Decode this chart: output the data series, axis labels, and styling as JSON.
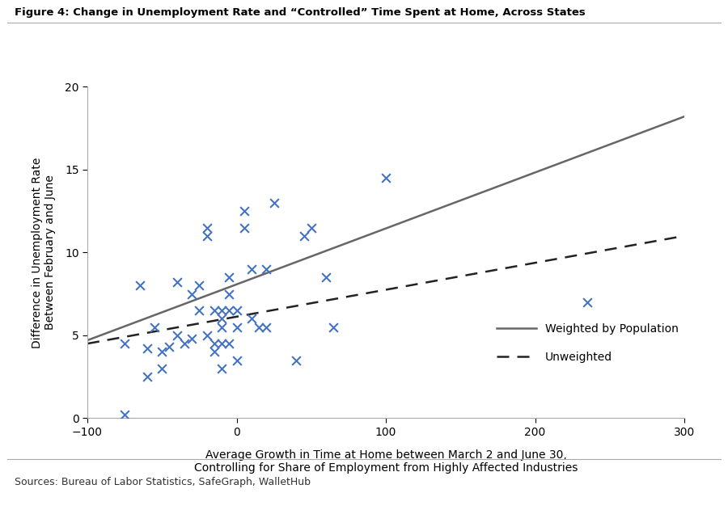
{
  "title": "Figure 4: Change in Unemployment Rate and “Controlled” Time Spent at Home, Across States",
  "xlabel_line1": "Average Growth in Time at Home between March 2 and June 30,",
  "xlabel_line2": "Controlling for Share of Employment from Highly Affected Industries",
  "ylabel_line1": "Difference in Unemployment Rate",
  "ylabel_line2": "Between February and June",
  "source_text": "Sources: Bureau of Labor Statistics, SafeGraph, WalletHub",
  "xlim": [
    -100,
    300
  ],
  "ylim": [
    0,
    20
  ],
  "xticks": [
    -100,
    0,
    100,
    200,
    300
  ],
  "yticks": [
    0,
    5,
    10,
    15,
    20
  ],
  "scatter_x": [
    -75,
    -65,
    -60,
    -55,
    -50,
    -45,
    -40,
    -40,
    -35,
    -30,
    -30,
    -25,
    -25,
    -20,
    -20,
    -20,
    -15,
    -15,
    -15,
    -10,
    -10,
    -10,
    -10,
    -5,
    -5,
    -5,
    -5,
    0,
    0,
    0,
    5,
    5,
    10,
    10,
    15,
    20,
    20,
    25,
    40,
    45,
    50,
    60,
    65,
    100,
    235,
    -10,
    -50,
    -60,
    -75
  ],
  "scatter_y": [
    4.5,
    8.0,
    4.2,
    5.5,
    4.0,
    4.3,
    5.0,
    8.2,
    4.5,
    7.5,
    4.8,
    8.0,
    6.5,
    11.5,
    11.0,
    5.0,
    6.5,
    4.5,
    4.0,
    6.5,
    6.0,
    5.5,
    4.5,
    8.5,
    7.5,
    6.5,
    4.5,
    6.5,
    5.5,
    3.5,
    12.5,
    11.5,
    9.0,
    6.0,
    5.5,
    9.0,
    5.5,
    13.0,
    3.5,
    11.0,
    11.5,
    8.5,
    5.5,
    14.5,
    7.0,
    3.0,
    3.0,
    2.5,
    0.2
  ],
  "weighted_line_x": [
    -100,
    300
  ],
  "weighted_line_y": [
    4.7,
    18.2
  ],
  "unweighted_line_x": [
    -100,
    300
  ],
  "unweighted_line_y": [
    4.5,
    11.0
  ],
  "scatter_color": "#4472C4",
  "weighted_color": "#666666",
  "unweighted_color": "#222222",
  "marker_size": 60,
  "figure_width": 9.0,
  "figure_height": 6.31,
  "background_color": "#ffffff",
  "title_fontsize": 9.5,
  "label_fontsize": 10,
  "tick_fontsize": 10,
  "source_fontsize": 9,
  "legend_weighted_label": "Weighted by Population",
  "legend_unweighted_label": "Unweighted"
}
